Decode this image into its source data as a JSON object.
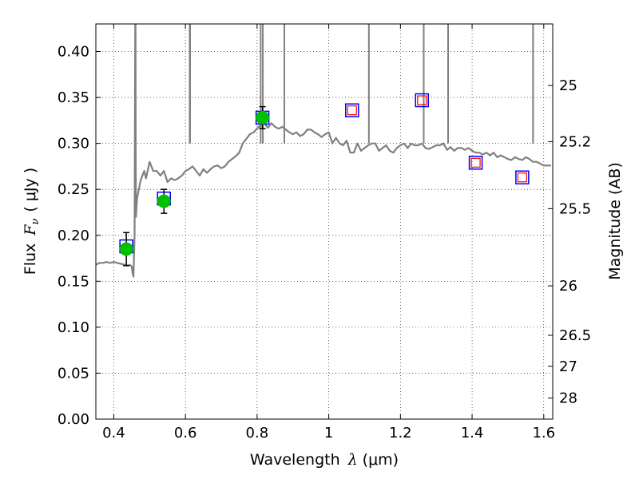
{
  "chart_data": {
    "type": "scatter",
    "title": "",
    "xlabel": "Wavelength",
    "xlabel_symbol": "λ",
    "xlabel_unit": "(μm)",
    "ylabel": "Flux",
    "ylabel_symbol": "F",
    "ylabel_subscript": "ν",
    "ylabel_unit": "( μJy )",
    "y2label": "Magnitude (AB)",
    "xlim": [
      0.35,
      1.625
    ],
    "ylim": [
      0.0,
      0.43
    ],
    "grid": true,
    "grid_style": "dotted",
    "x_ticks": [
      0.4,
      0.6,
      0.8,
      1.0,
      1.2,
      1.4,
      1.6
    ],
    "x_tick_labels": [
      "0.4",
      "0.6",
      "0.8",
      "1",
      "1.2",
      "1.4",
      "1.6"
    ],
    "y_ticks": [
      0.0,
      0.05,
      0.1,
      0.15,
      0.2,
      0.25,
      0.3,
      0.35,
      0.4
    ],
    "y_tick_labels": [
      "0.00",
      "0.05",
      "0.10",
      "0.15",
      "0.20",
      "0.25",
      "0.30",
      "0.35",
      "0.40"
    ],
    "magnitude_ticks": [
      {
        "label": "25",
        "flux": 0.363
      },
      {
        "label": "25.2",
        "flux": 0.302
      },
      {
        "label": "25.5",
        "flux": 0.229
      },
      {
        "label": "26",
        "flux": 0.145
      },
      {
        "label": "26.5",
        "flux": 0.0912
      },
      {
        "label": "27",
        "flux": 0.0575
      },
      {
        "label": "28",
        "flux": 0.0229
      }
    ],
    "series": [
      {
        "kind": "spectrum",
        "color": "#808080",
        "x": [
          0.35,
          0.36,
          0.37,
          0.38,
          0.39,
          0.4,
          0.41,
          0.42,
          0.43,
          0.44,
          0.445,
          0.45,
          0.452,
          0.455,
          0.458,
          0.46,
          0.462,
          0.465,
          0.47,
          0.475,
          0.48,
          0.485,
          0.49,
          0.5,
          0.51,
          0.52,
          0.53,
          0.54,
          0.55,
          0.56,
          0.57,
          0.58,
          0.59,
          0.6,
          0.61,
          0.62,
          0.63,
          0.64,
          0.65,
          0.66,
          0.67,
          0.68,
          0.69,
          0.7,
          0.71,
          0.72,
          0.73,
          0.74,
          0.75,
          0.76,
          0.77,
          0.78,
          0.79,
          0.8,
          0.81,
          0.82,
          0.83,
          0.84,
          0.85,
          0.86,
          0.87,
          0.88,
          0.89,
          0.9,
          0.91,
          0.92,
          0.93,
          0.94,
          0.95,
          0.96,
          0.97,
          0.98,
          0.99,
          1.0,
          1.01,
          1.02,
          1.03,
          1.04,
          1.05,
          1.06,
          1.07,
          1.08,
          1.09,
          1.1,
          1.11,
          1.12,
          1.13,
          1.14,
          1.15,
          1.16,
          1.17,
          1.18,
          1.19,
          1.2,
          1.21,
          1.22,
          1.23,
          1.24,
          1.25,
          1.26,
          1.27,
          1.28,
          1.29,
          1.3,
          1.31,
          1.32,
          1.33,
          1.34,
          1.35,
          1.36,
          1.37,
          1.38,
          1.39,
          1.4,
          1.41,
          1.42,
          1.43,
          1.44,
          1.45,
          1.46,
          1.47,
          1.48,
          1.49,
          1.5,
          1.51,
          1.52,
          1.53,
          1.54,
          1.55,
          1.56,
          1.57,
          1.58,
          1.59,
          1.6,
          1.61,
          1.62
        ],
        "y": [
          0.168,
          0.17,
          0.17,
          0.171,
          0.17,
          0.171,
          0.17,
          0.169,
          0.168,
          0.167,
          0.168,
          0.166,
          0.16,
          0.155,
          0.2,
          0.43,
          0.22,
          0.24,
          0.25,
          0.26,
          0.265,
          0.27,
          0.262,
          0.28,
          0.27,
          0.27,
          0.265,
          0.27,
          0.258,
          0.262,
          0.26,
          0.262,
          0.265,
          0.27,
          0.272,
          0.275,
          0.27,
          0.265,
          0.272,
          0.268,
          0.272,
          0.275,
          0.276,
          0.273,
          0.275,
          0.28,
          0.283,
          0.286,
          0.29,
          0.3,
          0.305,
          0.31,
          0.312,
          0.316,
          0.32,
          0.322,
          0.317,
          0.322,
          0.318,
          0.316,
          0.318,
          0.315,
          0.312,
          0.31,
          0.312,
          0.308,
          0.31,
          0.315,
          0.315,
          0.312,
          0.31,
          0.307,
          0.31,
          0.312,
          0.3,
          0.306,
          0.3,
          0.298,
          0.303,
          0.29,
          0.29,
          0.3,
          0.292,
          0.295,
          0.298,
          0.3,
          0.3,
          0.292,
          0.295,
          0.298,
          0.292,
          0.29,
          0.295,
          0.298,
          0.3,
          0.295,
          0.3,
          0.298,
          0.298,
          0.3,
          0.295,
          0.294,
          0.296,
          0.298,
          0.298,
          0.3,
          0.293,
          0.296,
          0.292,
          0.295,
          0.295,
          0.293,
          0.295,
          0.292,
          0.29,
          0.29,
          0.288,
          0.29,
          0.287,
          0.29,
          0.285,
          0.287,
          0.285,
          0.283,
          0.282,
          0.285,
          0.283,
          0.282,
          0.285,
          0.283,
          0.28,
          0.28,
          0.278,
          0.276,
          0.276,
          0.276
        ]
      },
      {
        "kind": "model-photometry",
        "marker": "square",
        "color": "#0000ff",
        "x": [
          0.435,
          0.54,
          0.815,
          1.065,
          1.26,
          1.41,
          1.54
        ],
        "y": [
          0.188,
          0.24,
          0.328,
          0.336,
          0.347,
          0.279,
          0.263
        ]
      },
      {
        "kind": "observed-detections",
        "marker": "circle",
        "color": "#00c000",
        "x": [
          0.435,
          0.54,
          0.815
        ],
        "y": [
          0.185,
          0.237,
          0.328
        ],
        "err": [
          0.018,
          0.013,
          0.012
        ]
      },
      {
        "kind": "observed-other",
        "marker": "square-small",
        "color": "#ff0000",
        "x": [
          1.065,
          1.26,
          1.41,
          1.54
        ],
        "y": [
          0.336,
          0.347,
          0.279,
          0.263
        ]
      }
    ]
  }
}
